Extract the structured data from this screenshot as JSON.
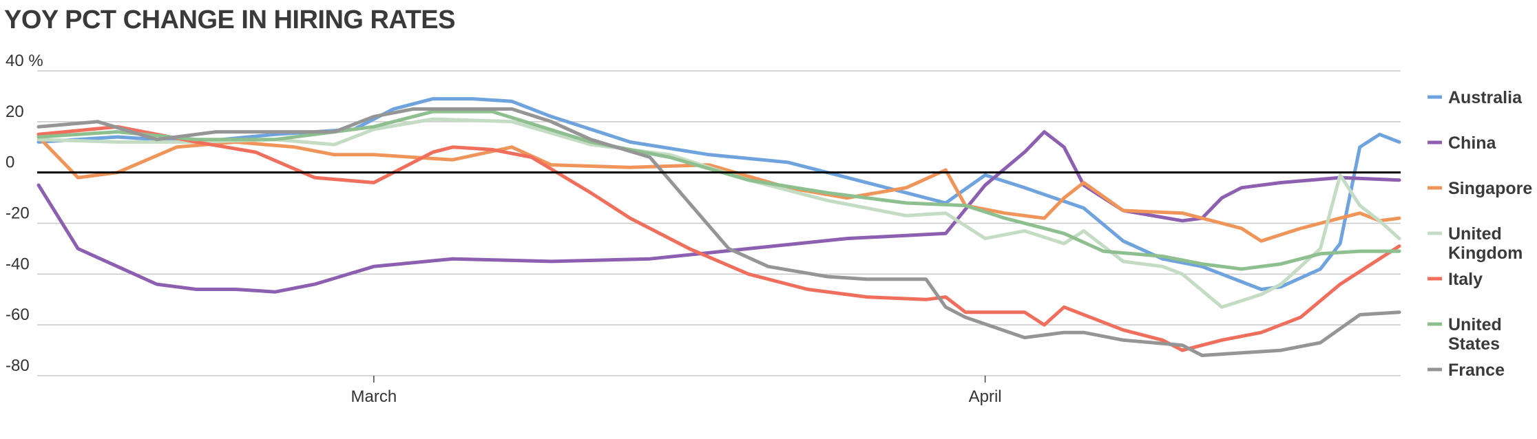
{
  "chart_data": {
    "type": "line",
    "title": "YOY PCT CHANGE IN HIRING RATES",
    "xlabel": "",
    "ylabel": "",
    "y_unit": "%",
    "ylim": [
      -80,
      40
    ],
    "y_ticks": [
      {
        "value": 40,
        "label": "40 %"
      },
      {
        "value": 20,
        "label": "20"
      },
      {
        "value": 0,
        "label": "0"
      },
      {
        "value": -20,
        "label": "-20"
      },
      {
        "value": -40,
        "label": "-40"
      },
      {
        "value": -60,
        "label": "-60"
      },
      {
        "value": -80,
        "label": "-80"
      }
    ],
    "x_range": [
      "2020-02-13",
      "2020-04-22"
    ],
    "x_ticks": [
      {
        "date": "2020-03-01",
        "label": "March"
      },
      {
        "date": "2020-04-01",
        "label": "April"
      }
    ],
    "grid": true,
    "zero_line": true,
    "legend_position": "right",
    "colors": {
      "grid": "#c8c8c8",
      "zero_line": "#000000",
      "text": "#333333"
    },
    "series": [
      {
        "name": "Australia",
        "color": "#6fa3dd",
        "x": [
          "2020-02-13",
          "2020-02-17",
          "2020-02-21",
          "2020-02-25",
          "2020-02-29",
          "2020-03-02",
          "2020-03-04",
          "2020-03-06",
          "2020-03-08",
          "2020-03-10",
          "2020-03-14",
          "2020-03-18",
          "2020-03-22",
          "2020-03-26",
          "2020-03-30",
          "2020-04-01",
          "2020-04-03",
          "2020-04-06",
          "2020-04-08",
          "2020-04-10",
          "2020-04-12",
          "2020-04-15",
          "2020-04-16",
          "2020-04-18",
          "2020-04-19",
          "2020-04-20",
          "2020-04-21",
          "2020-04-22"
        ],
        "y": [
          12,
          14,
          12,
          15,
          17,
          25,
          29,
          29,
          28,
          22,
          12,
          7,
          4,
          -4,
          -12,
          -1,
          -6,
          -14,
          -27,
          -34,
          -37,
          -46,
          -45,
          -38,
          -28,
          10,
          15,
          12
        ]
      },
      {
        "name": "China",
        "color": "#8c5fb0",
        "x": [
          "2020-02-13",
          "2020-02-15",
          "2020-02-17",
          "2020-02-19",
          "2020-02-21",
          "2020-02-23",
          "2020-02-25",
          "2020-02-27",
          "2020-03-01",
          "2020-03-05",
          "2020-03-10",
          "2020-03-15",
          "2020-03-20",
          "2020-03-25",
          "2020-03-30",
          "2020-04-01",
          "2020-04-03",
          "2020-04-04",
          "2020-04-05",
          "2020-04-06",
          "2020-04-08",
          "2020-04-11",
          "2020-04-12",
          "2020-04-13",
          "2020-04-14",
          "2020-04-16",
          "2020-04-19",
          "2020-04-22"
        ],
        "y": [
          -5,
          -30,
          -37,
          -44,
          -46,
          -46,
          -47,
          -44,
          -37,
          -34,
          -35,
          -34,
          -30,
          -26,
          -24,
          -5,
          8,
          16,
          10,
          -5,
          -15,
          -19,
          -18,
          -10,
          -6,
          -4,
          -2,
          -3
        ]
      },
      {
        "name": "Singapore",
        "color": "#f0955a",
        "x": [
          "2020-02-13",
          "2020-02-15",
          "2020-02-17",
          "2020-02-20",
          "2020-02-23",
          "2020-02-26",
          "2020-02-28",
          "2020-03-01",
          "2020-03-05",
          "2020-03-08",
          "2020-03-10",
          "2020-03-14",
          "2020-03-18",
          "2020-03-22",
          "2020-03-25",
          "2020-03-28",
          "2020-03-30",
          "2020-03-31",
          "2020-04-02",
          "2020-04-04",
          "2020-04-05",
          "2020-04-06",
          "2020-04-08",
          "2020-04-11",
          "2020-04-14",
          "2020-04-15",
          "2020-04-17",
          "2020-04-19",
          "2020-04-20",
          "2020-04-21",
          "2020-04-22"
        ],
        "y": [
          14,
          -2,
          0,
          10,
          12,
          10,
          7,
          7,
          5,
          10,
          3,
          2,
          3,
          -6,
          -10,
          -6,
          1,
          -13,
          -16,
          -18,
          -10,
          -4,
          -15,
          -16,
          -22,
          -27,
          -22,
          -18,
          -16,
          -19,
          -18
        ]
      },
      {
        "name": "United Kingdom",
        "color": "#c3dcc3",
        "x": [
          "2020-02-13",
          "2020-02-17",
          "2020-02-21",
          "2020-02-25",
          "2020-02-28",
          "2020-03-01",
          "2020-03-04",
          "2020-03-08",
          "2020-03-12",
          "2020-03-16",
          "2020-03-20",
          "2020-03-24",
          "2020-03-28",
          "2020-03-30",
          "2020-04-01",
          "2020-04-03",
          "2020-04-05",
          "2020-04-06",
          "2020-04-08",
          "2020-04-10",
          "2020-04-11",
          "2020-04-13",
          "2020-04-15",
          "2020-04-16",
          "2020-04-18",
          "2020-04-19",
          "2020-04-20",
          "2020-04-21",
          "2020-04-22"
        ],
        "y": [
          13,
          12,
          12,
          13,
          11,
          17,
          21,
          20,
          11,
          7,
          -3,
          -11,
          -17,
          -16,
          -26,
          -23,
          -28,
          -23,
          -35,
          -37,
          -40,
          -53,
          -48,
          -44,
          -30,
          -1,
          -13,
          -19,
          -26
        ]
      },
      {
        "name": "Italy",
        "color": "#f06e5c",
        "x": [
          "2020-02-13",
          "2020-02-17",
          "2020-02-21",
          "2020-02-24",
          "2020-02-27",
          "2020-03-01",
          "2020-03-02",
          "2020-03-04",
          "2020-03-05",
          "2020-03-07",
          "2020-03-09",
          "2020-03-12",
          "2020-03-14",
          "2020-03-17",
          "2020-03-20",
          "2020-03-23",
          "2020-03-26",
          "2020-03-29",
          "2020-03-30",
          "2020-03-31",
          "2020-04-03",
          "2020-04-04",
          "2020-04-05",
          "2020-04-08",
          "2020-04-10",
          "2020-04-11",
          "2020-04-13",
          "2020-04-15",
          "2020-04-17",
          "2020-04-19",
          "2020-04-20",
          "2020-04-22"
        ],
        "y": [
          15,
          18,
          12,
          8,
          -2,
          -4,
          0,
          8,
          10,
          9,
          6,
          -8,
          -18,
          -30,
          -40,
          -46,
          -49,
          -50,
          -49,
          -55,
          -55,
          -60,
          -53,
          -62,
          -66,
          -70,
          -66,
          -63,
          -57,
          -44,
          -39,
          -29
        ]
      },
      {
        "name": "United States",
        "color": "#8dbf8f",
        "x": [
          "2020-02-13",
          "2020-02-17",
          "2020-02-21",
          "2020-02-25",
          "2020-03-01",
          "2020-03-04",
          "2020-03-07",
          "2020-03-12",
          "2020-03-16",
          "2020-03-20",
          "2020-03-24",
          "2020-03-28",
          "2020-03-31",
          "2020-04-02",
          "2020-04-05",
          "2020-04-07",
          "2020-04-10",
          "2020-04-12",
          "2020-04-14",
          "2020-04-16",
          "2020-04-18",
          "2020-04-20",
          "2020-04-22"
        ],
        "y": [
          14,
          16,
          13,
          13,
          18,
          24,
          24,
          12,
          6,
          -3,
          -8,
          -12,
          -13,
          -18,
          -24,
          -31,
          -33,
          -36,
          -38,
          -36,
          -32,
          -31,
          -31
        ]
      },
      {
        "name": "France",
        "color": "#959595",
        "x": [
          "2020-02-13",
          "2020-02-16",
          "2020-02-19",
          "2020-02-22",
          "2020-02-25",
          "2020-02-28",
          "2020-03-01",
          "2020-03-03",
          "2020-03-06",
          "2020-03-08",
          "2020-03-10",
          "2020-03-12",
          "2020-03-15",
          "2020-03-17",
          "2020-03-19",
          "2020-03-21",
          "2020-03-24",
          "2020-03-26",
          "2020-03-29",
          "2020-03-30",
          "2020-03-31",
          "2020-04-03",
          "2020-04-05",
          "2020-04-06",
          "2020-04-08",
          "2020-04-11",
          "2020-04-12",
          "2020-04-16",
          "2020-04-18",
          "2020-04-20",
          "2020-04-22"
        ],
        "y": [
          18,
          20,
          13,
          16,
          16,
          16,
          22,
          25,
          25,
          25,
          20,
          13,
          6,
          -12,
          -30,
          -37,
          -41,
          -42,
          -42,
          -53,
          -57,
          -65,
          -63,
          -63,
          -66,
          -68,
          -72,
          -70,
          -67,
          -56,
          -55
        ]
      }
    ]
  }
}
